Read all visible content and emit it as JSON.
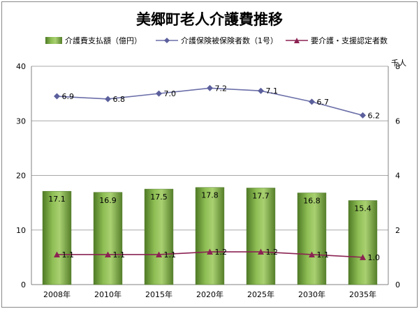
{
  "chart_data": {
    "type": "bar",
    "title": "美郷町老人介護費推移",
    "categories": [
      "2008年",
      "2010年",
      "2015年",
      "2020年",
      "2025年",
      "2030年",
      "2035年"
    ],
    "series": [
      {
        "name": "介護費支払額（億円）",
        "kind": "bar",
        "axis": "left",
        "values": [
          17.1,
          16.9,
          17.5,
          17.8,
          17.7,
          16.8,
          15.4
        ],
        "color": "#6e9b3c"
      },
      {
        "name": "介護保険被保険者数（1号）",
        "kind": "line",
        "axis": "right",
        "values": [
          6.9,
          6.8,
          7.0,
          7.2,
          7.1,
          6.7,
          6.2
        ],
        "color": "#6b6fa8"
      },
      {
        "name": "要介護・支援認定者数",
        "kind": "line",
        "axis": "right",
        "values": [
          1.1,
          1.1,
          1.1,
          1.2,
          1.2,
          1.1,
          1.0
        ],
        "color": "#8b2252"
      }
    ],
    "y_left": {
      "ylim": [
        0,
        40
      ],
      "ticks": [
        "0",
        "10",
        "20",
        "30",
        "40"
      ]
    },
    "y_right": {
      "ylim": [
        0,
        8
      ],
      "ticks": [
        "0",
        "2",
        "4",
        "6",
        "8"
      ],
      "unit": "千人"
    },
    "grid": true,
    "legend": "top"
  }
}
